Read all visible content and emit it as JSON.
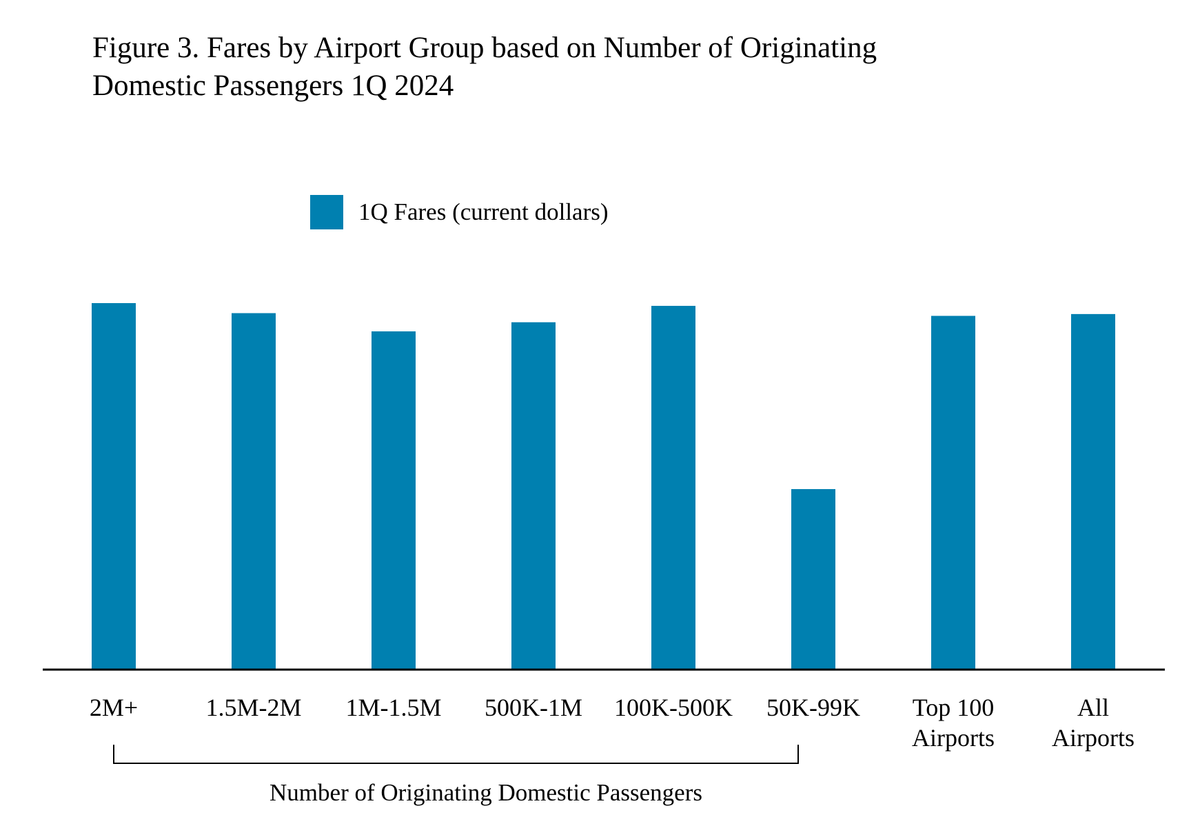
{
  "chart_data": {
    "type": "bar",
    "title": "Figure 3. Fares by Airport Group based on Number of Originating Domestic Passengers 1Q 2024",
    "title_lines": [
      "Figure 3. Fares by Airport Group based on Number of Originating",
      "Domestic Passengers 1Q 2024"
    ],
    "categories": [
      "2M+",
      "1.5M-2M",
      "1M-1.5M",
      "500K-1M",
      "100K-500K",
      "50K-99K",
      "Top 100 Airports",
      "All Airports"
    ],
    "category_label_lines": [
      [
        "2M+"
      ],
      [
        "1.5M-2M"
      ],
      [
        "1M-1.5M"
      ],
      [
        "500K-1M"
      ],
      [
        "100K-500K"
      ],
      [
        "50K-99K"
      ],
      [
        "Top 100",
        "Airports"
      ],
      [
        "All",
        "Airports"
      ]
    ],
    "series": [
      {
        "name": "1Q Fares (current dollars)",
        "color": "#0080b0",
        "values": [
          402,
          391,
          371,
          381,
          399,
          198,
          388,
          390
        ]
      }
    ],
    "ylim": [
      0,
      402
    ],
    "xlabel": "",
    "ylabel": "",
    "grid": false,
    "legend_position": "top",
    "bracket": {
      "label": "Number of Originating Domestic Passengers",
      "spans_categories": [
        0,
        5
      ]
    }
  }
}
